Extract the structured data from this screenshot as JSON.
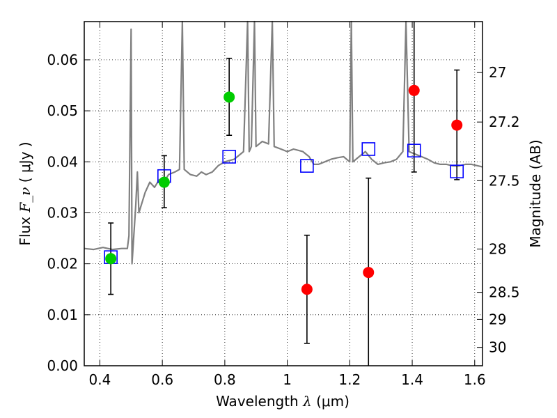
{
  "chart_data": {
    "type": "scatter",
    "title": "",
    "xlabel": "Wavelength",
    "xlabel_symbol": "λ",
    "xlabel_unit": "(μm)",
    "ylabel": "Flux",
    "ylabel_symbol": "F_ν",
    "ylabel_unit": "( μJy )",
    "y2label": "Magnitude (AB)",
    "xlim": [
      0.35,
      1.625
    ],
    "ylim": [
      0.0,
      0.0675
    ],
    "grid": true,
    "x_ticks": [
      0.4,
      0.6,
      0.8,
      1.0,
      1.2,
      1.4,
      1.6
    ],
    "x_tick_labels": [
      "0.4",
      "0.6",
      "0.8",
      "1",
      "1.2",
      "1.4",
      "1.6"
    ],
    "y_ticks": [
      0.0,
      0.01,
      0.02,
      0.03,
      0.04,
      0.05,
      0.06
    ],
    "y_tick_labels": [
      "0.00",
      "0.01",
      "0.02",
      "0.03",
      "0.04",
      "0.05",
      "0.06"
    ],
    "y2_ticks": [
      {
        "label": "27",
        "flux": 0.0575
      },
      {
        "label": "27.2",
        "flux": 0.0478
      },
      {
        "label": "27.5",
        "flux": 0.0363
      },
      {
        "label": "28",
        "flux": 0.0229
      },
      {
        "label": "28.5",
        "flux": 0.0144
      },
      {
        "label": "29",
        "flux": 0.0091
      },
      {
        "label": "30",
        "flux": 0.0036
      }
    ],
    "colors": {
      "detection": "#00cc00",
      "upper_limit": "#ff0000",
      "model": "#0000ff",
      "sed": "#808080",
      "error": "#000000"
    },
    "series": [
      {
        "kind": "detections",
        "points": [
          {
            "x": 0.435,
            "y": 0.021,
            "yerr_low": 0.014,
            "yerr_high": 0.028
          },
          {
            "x": 0.606,
            "y": 0.036,
            "yerr_low": 0.031,
            "yerr_high": 0.0412
          },
          {
            "x": 0.814,
            "y": 0.0527,
            "yerr_low": 0.0452,
            "yerr_high": 0.0603
          }
        ]
      },
      {
        "kind": "non_detections",
        "points": [
          {
            "x": 1.063,
            "y": 0.015,
            "yerr_low": 0.0044,
            "yerr_high": 0.0256
          },
          {
            "x": 1.26,
            "y": 0.0183,
            "yerr_low": 0.0,
            "yerr_high": 0.0368
          },
          {
            "x": 1.406,
            "y": 0.054,
            "yerr_low": 0.038,
            "yerr_high": 0.0675
          },
          {
            "x": 1.543,
            "y": 0.0472,
            "yerr_low": 0.0365,
            "yerr_high": 0.058
          }
        ]
      },
      {
        "kind": "model_photometry",
        "points": [
          {
            "x": 0.435,
            "y": 0.0213
          },
          {
            "x": 0.606,
            "y": 0.0372
          },
          {
            "x": 0.814,
            "y": 0.041
          },
          {
            "x": 1.063,
            "y": 0.0392
          },
          {
            "x": 1.26,
            "y": 0.0425
          },
          {
            "x": 1.406,
            "y": 0.0422
          },
          {
            "x": 1.543,
            "y": 0.0381
          }
        ]
      },
      {
        "kind": "sed_model",
        "points": [
          [
            0.35,
            0.023
          ],
          [
            0.38,
            0.0228
          ],
          [
            0.41,
            0.0232
          ],
          [
            0.44,
            0.0228
          ],
          [
            0.47,
            0.023
          ],
          [
            0.488,
            0.023
          ],
          [
            0.493,
            0.0255
          ],
          [
            0.5,
            0.066
          ],
          [
            0.503,
            0.02
          ],
          [
            0.515,
            0.0315
          ],
          [
            0.52,
            0.038
          ],
          [
            0.525,
            0.03
          ],
          [
            0.545,
            0.034
          ],
          [
            0.56,
            0.036
          ],
          [
            0.575,
            0.035
          ],
          [
            0.59,
            0.0365
          ],
          [
            0.605,
            0.036
          ],
          [
            0.62,
            0.0375
          ],
          [
            0.64,
            0.038
          ],
          [
            0.655,
            0.0385
          ],
          [
            0.664,
            0.0675
          ],
          [
            0.67,
            0.0385
          ],
          [
            0.69,
            0.0375
          ],
          [
            0.71,
            0.0372
          ],
          [
            0.725,
            0.038
          ],
          [
            0.74,
            0.0375
          ],
          [
            0.76,
            0.038
          ],
          [
            0.78,
            0.0393
          ],
          [
            0.8,
            0.04
          ],
          [
            0.83,
            0.0405
          ],
          [
            0.86,
            0.042
          ],
          [
            0.873,
            0.0675
          ],
          [
            0.878,
            0.042
          ],
          [
            0.885,
            0.043
          ],
          [
            0.895,
            0.0675
          ],
          [
            0.9,
            0.043
          ],
          [
            0.92,
            0.044
          ],
          [
            0.94,
            0.0435
          ],
          [
            0.952,
            0.0675
          ],
          [
            0.958,
            0.043
          ],
          [
            0.98,
            0.0425
          ],
          [
            1.0,
            0.042
          ],
          [
            1.02,
            0.0425
          ],
          [
            1.05,
            0.042
          ],
          [
            1.07,
            0.041
          ],
          [
            1.085,
            0.0395
          ],
          [
            1.1,
            0.0395
          ],
          [
            1.12,
            0.04
          ],
          [
            1.14,
            0.0405
          ],
          [
            1.16,
            0.0408
          ],
          [
            1.18,
            0.041
          ],
          [
            1.2,
            0.04
          ],
          [
            1.205,
            0.0675
          ],
          [
            1.21,
            0.04
          ],
          [
            1.23,
            0.041
          ],
          [
            1.25,
            0.042
          ],
          [
            1.27,
            0.0405
          ],
          [
            1.29,
            0.0395
          ],
          [
            1.31,
            0.0398
          ],
          [
            1.33,
            0.04
          ],
          [
            1.35,
            0.0405
          ],
          [
            1.37,
            0.042
          ],
          [
            1.38,
            0.0675
          ],
          [
            1.39,
            0.042
          ],
          [
            1.41,
            0.0415
          ],
          [
            1.43,
            0.041
          ],
          [
            1.45,
            0.0405
          ],
          [
            1.47,
            0.0398
          ],
          [
            1.49,
            0.0395
          ],
          [
            1.51,
            0.0395
          ],
          [
            1.53,
            0.0392
          ],
          [
            1.55,
            0.0392
          ],
          [
            1.57,
            0.0395
          ],
          [
            1.59,
            0.0395
          ],
          [
            1.625,
            0.039
          ]
        ]
      }
    ]
  }
}
